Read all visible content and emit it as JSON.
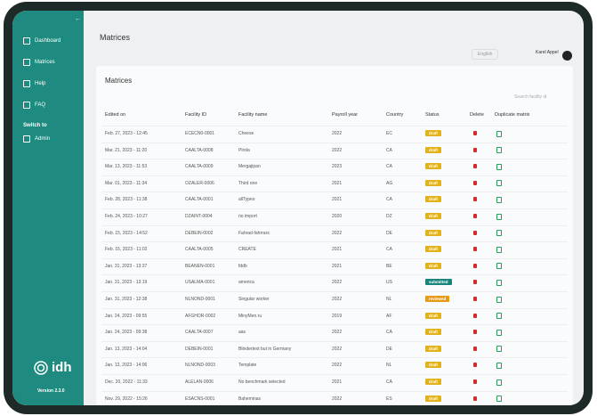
{
  "sidebar": {
    "items": [
      "Dashboard",
      "Matrices",
      "Help",
      "FAQ"
    ],
    "switch_label": "Switch to",
    "switch_item": "Admin",
    "logo": "idh",
    "version": "Version 2.3.0"
  },
  "header": {
    "title": "Matrices",
    "language": "English",
    "user": "Karel Appel"
  },
  "panel": {
    "title": "Matrices",
    "search": "Search facility id"
  },
  "table": {
    "columns": [
      "Edited on",
      "Facility ID",
      "Facility name",
      "Payroll year",
      "Country",
      "Status",
      "Delete",
      "Duplicate matrix"
    ],
    "status_colors": {
      "draft": "#e2b21c",
      "submitted": "#17857b",
      "reviewed": "#e59a1a"
    },
    "rows": [
      [
        "Feb. 27, 2023 - 12:45",
        "ECECN0-0001",
        "Cheese",
        "2022",
        "EC",
        "draft"
      ],
      [
        "Mar. 21, 2023 - 11:20",
        "CAALTA-0008",
        "Pirola",
        "2022",
        "CA",
        "draft"
      ],
      [
        "Mar. 13, 2023 - 11:53",
        "CAALTA-0009",
        "Mergajipan",
        "2023",
        "CA",
        "draft"
      ],
      [
        "Mar. 01, 2023 - 11:34",
        "OZALER-0006",
        "Third one",
        "2021",
        "AG",
        "draft"
      ],
      [
        "Feb. 28, 2023 - 11:38",
        "CAALTA-0001",
        "allTypes",
        "2021",
        "CA",
        "draft"
      ],
      [
        "Feb. 24, 2023 - 10:27",
        "DZAINT-0004",
        "no import",
        "2020",
        "DZ",
        "draft"
      ],
      [
        "Feb. 15, 2023 - 14:52",
        "DEBEIN-0002",
        "Fahrad-fahrrars",
        "2022",
        "DE",
        "draft"
      ],
      [
        "Feb. 15, 2023 - 11:02",
        "CAALTA-0005",
        "CREATE",
        "2021",
        "CA",
        "draft"
      ],
      [
        "Jan. 31, 2023 - 13:37",
        "BEANEN-0001",
        "fddb",
        "2021",
        "BE",
        "draft"
      ],
      [
        "Jan. 31, 2023 - 13:19",
        "USALMA-0001",
        "america",
        "2022",
        "US",
        "submitted"
      ],
      [
        "Jan. 31, 2023 - 12:38",
        "NLNOND-0001",
        "Singular worker",
        "2022",
        "NL",
        "reviewed"
      ],
      [
        "Jan. 24, 2023 - 09:55",
        "AFGHOR-0002",
        "MinyMen.ru",
        "2019",
        "AF",
        "draft"
      ],
      [
        "Jan. 24, 2023 - 09:38",
        "CAALTA-0007",
        "aas",
        "2022",
        "CA",
        "draft"
      ],
      [
        "Jan. 13, 2023 - 14:04",
        "DEBEIN-0001",
        "Blindertext but in Germany",
        "2022",
        "DE",
        "draft"
      ],
      [
        "Jan. 13, 2023 - 14:06",
        "NLNOND-0003",
        "Template",
        "2022",
        "NL",
        "draft"
      ],
      [
        "Dec. 20, 2022 - 11:33",
        "ALELAN-0006",
        "No benchmark selected",
        "2021",
        "CA",
        "draft"
      ],
      [
        "Nov. 29, 2022 - 15:26",
        "ESACNS-0001",
        "Baheminas",
        "2022",
        "ES",
        "draft"
      ]
    ]
  }
}
